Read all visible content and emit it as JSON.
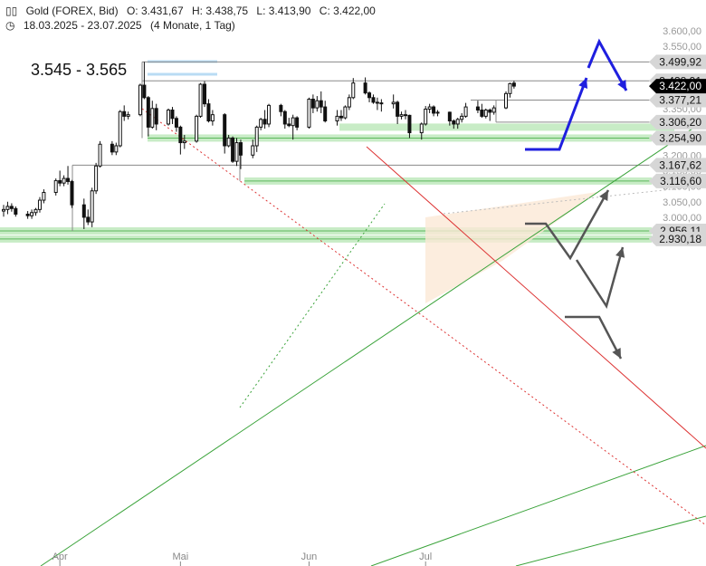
{
  "header": {
    "icon": "candlestick-icon",
    "instrument": "Gold (FOREX, Bid)",
    "open": "O: 3.431,67",
    "high": "H: 3.438,75",
    "low": "L: 3.413,90",
    "close": "C: 3.422,00",
    "clock_icon": "clock-icon",
    "range": "18.03.2025 - 23.07.2025",
    "span": "(4 Monate, 1 Tag)"
  },
  "target_zone": {
    "text": "3.545 - 3.565",
    "low": 3545,
    "high": 3565
  },
  "chart_data": {
    "type": "candlestick",
    "y_range": [
      2920,
      3620
    ],
    "y_ticks": [
      {
        "value": 3600,
        "label": "3.600,00"
      },
      {
        "value": 3550,
        "label": "3.550,00"
      },
      {
        "value": 3450,
        "label": "3.450,00"
      },
      {
        "value": 3400,
        "label": "3.400,00"
      },
      {
        "value": 3350,
        "label": "3.350,00"
      },
      {
        "value": 3200,
        "label": "3.200,00"
      },
      {
        "value": 3150,
        "label": "3.150,00"
      },
      {
        "value": 3100,
        "label": "3.100,00"
      },
      {
        "value": 3050,
        "label": "3.050,00"
      },
      {
        "value": 3000,
        "label": "3.000,00"
      }
    ],
    "x_labels": [
      {
        "label": "Apr",
        "date": "2025-04-01"
      },
      {
        "label": "Mai",
        "date": "2025-05-01"
      },
      {
        "label": "Jun",
        "date": "2025-06-02"
      },
      {
        "label": "Jul",
        "date": "2025-07-01"
      }
    ],
    "levels": [
      {
        "value": 3499.92,
        "label": "3.499,92",
        "style": "line"
      },
      {
        "value": 3438.91,
        "label": "3.438,91",
        "style": "line"
      },
      {
        "value": 3377.21,
        "label": "3.377,21",
        "style": "line"
      },
      {
        "value": 3306.2,
        "label": "3.306,20",
        "style": "line"
      },
      {
        "value": 3254.9,
        "label": "3.254,90",
        "style": "support"
      },
      {
        "value": 3167.62,
        "label": "3.167,62",
        "style": "line"
      },
      {
        "value": 3116.6,
        "label": "3.116,60",
        "style": "support"
      },
      {
        "value": 2956.11,
        "label": "2.956,11",
        "style": "support"
      },
      {
        "value": 2930.18,
        "label": "2.930,18",
        "style": "support"
      }
    ],
    "current_price": {
      "value": 3422.0,
      "label": "3.422,00"
    },
    "candles": [
      {
        "date": "2025-03-18",
        "o": 3020,
        "h": 3040,
        "l": 3002,
        "c": 3025
      },
      {
        "date": "2025-03-19",
        "o": 3025,
        "h": 3050,
        "l": 3010,
        "c": 3035
      },
      {
        "date": "2025-03-20",
        "o": 3035,
        "h": 3045,
        "l": 3018,
        "c": 3028
      },
      {
        "date": "2025-03-21",
        "o": 3028,
        "h": 3035,
        "l": 3002,
        "c": 3010
      },
      {
        "date": "2025-03-24",
        "o": 3010,
        "h": 3020,
        "l": 2995,
        "c": 3005
      },
      {
        "date": "2025-03-25",
        "o": 3005,
        "h": 3025,
        "l": 2995,
        "c": 3015
      },
      {
        "date": "2025-03-26",
        "o": 3015,
        "h": 3030,
        "l": 3005,
        "c": 3025
      },
      {
        "date": "2025-03-27",
        "o": 3025,
        "h": 3065,
        "l": 3015,
        "c": 3055
      },
      {
        "date": "2025-03-28",
        "o": 3055,
        "h": 3090,
        "l": 3045,
        "c": 3080
      },
      {
        "date": "2025-03-31",
        "o": 3080,
        "h": 3125,
        "l": 3070,
        "c": 3118
      },
      {
        "date": "2025-04-01",
        "o": 3118,
        "h": 3150,
        "l": 3100,
        "c": 3110
      },
      {
        "date": "2025-04-02",
        "o": 3110,
        "h": 3135,
        "l": 3100,
        "c": 3125
      },
      {
        "date": "2025-04-03",
        "o": 3125,
        "h": 3165,
        "l": 3105,
        "c": 3115
      },
      {
        "date": "2025-04-04",
        "o": 3115,
        "h": 3120,
        "l": 3030,
        "c": 3040
      },
      {
        "date": "2025-04-07",
        "o": 3040,
        "h": 3060,
        "l": 2962,
        "c": 3000
      },
      {
        "date": "2025-04-08",
        "o": 3000,
        "h": 3025,
        "l": 2975,
        "c": 2985
      },
      {
        "date": "2025-04-09",
        "o": 2985,
        "h": 3095,
        "l": 2968,
        "c": 3085
      },
      {
        "date": "2025-04-10",
        "o": 3085,
        "h": 3175,
        "l": 3075,
        "c": 3165
      },
      {
        "date": "2025-04-11",
        "o": 3165,
        "h": 3245,
        "l": 3160,
        "c": 3235
      },
      {
        "date": "2025-04-14",
        "o": 3235,
        "h": 3245,
        "l": 3200,
        "c": 3210
      },
      {
        "date": "2025-04-15",
        "o": 3210,
        "h": 3240,
        "l": 3200,
        "c": 3230
      },
      {
        "date": "2025-04-16",
        "o": 3230,
        "h": 3345,
        "l": 3225,
        "c": 3340
      },
      {
        "date": "2025-04-17",
        "o": 3340,
        "h": 3360,
        "l": 3310,
        "c": 3325
      },
      {
        "date": "2025-04-18",
        "o": 3325,
        "h": 3340,
        "l": 3315,
        "c": 3330
      },
      {
        "date": "2025-04-21",
        "o": 3330,
        "h": 3430,
        "l": 3325,
        "c": 3425
      },
      {
        "date": "2025-04-22",
        "o": 3425,
        "h": 3500,
        "l": 3380,
        "c": 3385
      },
      {
        "date": "2025-04-23",
        "o": 3385,
        "h": 3390,
        "l": 3260,
        "c": 3290
      },
      {
        "date": "2025-04-24",
        "o": 3290,
        "h": 3375,
        "l": 3285,
        "c": 3350
      },
      {
        "date": "2025-04-25",
        "o": 3350,
        "h": 3365,
        "l": 3280,
        "c": 3300
      },
      {
        "date": "2025-04-28",
        "o": 3300,
        "h": 3350,
        "l": 3295,
        "c": 3345
      },
      {
        "date": "2025-04-29",
        "o": 3345,
        "h": 3355,
        "l": 3300,
        "c": 3318
      },
      {
        "date": "2025-04-30",
        "o": 3318,
        "h": 3325,
        "l": 3275,
        "c": 3290
      },
      {
        "date": "2025-05-01",
        "o": 3290,
        "h": 3295,
        "l": 3202,
        "c": 3240
      },
      {
        "date": "2025-05-02",
        "o": 3240,
        "h": 3265,
        "l": 3220,
        "c": 3245
      },
      {
        "date": "2025-05-05",
        "o": 3245,
        "h": 3330,
        "l": 3240,
        "c": 3325
      },
      {
        "date": "2025-05-06",
        "o": 3325,
        "h": 3432,
        "l": 3320,
        "c": 3428
      },
      {
        "date": "2025-05-07",
        "o": 3428,
        "h": 3438,
        "l": 3355,
        "c": 3365
      },
      {
        "date": "2025-05-08",
        "o": 3365,
        "h": 3380,
        "l": 3305,
        "c": 3310
      },
      {
        "date": "2025-05-09",
        "o": 3310,
        "h": 3345,
        "l": 3295,
        "c": 3330
      },
      {
        "date": "2025-05-12",
        "o": 3330,
        "h": 3335,
        "l": 3205,
        "c": 3230
      },
      {
        "date": "2025-05-13",
        "o": 3230,
        "h": 3265,
        "l": 3225,
        "c": 3255
      },
      {
        "date": "2025-05-14",
        "o": 3255,
        "h": 3260,
        "l": 3175,
        "c": 3180
      },
      {
        "date": "2025-05-15",
        "o": 3180,
        "h": 3255,
        "l": 3165,
        "c": 3240
      },
      {
        "date": "2025-05-16",
        "o": 3240,
        "h": 3250,
        "l": 3155,
        "c": 3200
      },
      {
        "date": "2025-05-19",
        "o": 3200,
        "h": 3250,
        "l": 3190,
        "c": 3230
      },
      {
        "date": "2025-05-20",
        "o": 3230,
        "h": 3295,
        "l": 3210,
        "c": 3290
      },
      {
        "date": "2025-05-21",
        "o": 3290,
        "h": 3320,
        "l": 3280,
        "c": 3315
      },
      {
        "date": "2025-05-22",
        "o": 3315,
        "h": 3345,
        "l": 3285,
        "c": 3300
      },
      {
        "date": "2025-05-23",
        "o": 3300,
        "h": 3365,
        "l": 3290,
        "c": 3360
      },
      {
        "date": "2025-05-26",
        "o": 3360,
        "h": 3365,
        "l": 3325,
        "c": 3340
      },
      {
        "date": "2025-05-27",
        "o": 3340,
        "h": 3345,
        "l": 3285,
        "c": 3300
      },
      {
        "date": "2025-05-28",
        "o": 3300,
        "h": 3320,
        "l": 3290,
        "c": 3295
      },
      {
        "date": "2025-05-29",
        "o": 3295,
        "h": 3330,
        "l": 3250,
        "c": 3320
      },
      {
        "date": "2025-05-30",
        "o": 3320,
        "h": 3325,
        "l": 3280,
        "c": 3290
      },
      {
        "date": "2025-06-02",
        "o": 3290,
        "h": 3385,
        "l": 3285,
        "c": 3380
      },
      {
        "date": "2025-06-03",
        "o": 3380,
        "h": 3395,
        "l": 3335,
        "c": 3352
      },
      {
        "date": "2025-06-04",
        "o": 3352,
        "h": 3390,
        "l": 3340,
        "c": 3375
      },
      {
        "date": "2025-06-05",
        "o": 3375,
        "h": 3405,
        "l": 3335,
        "c": 3355
      },
      {
        "date": "2025-06-06",
        "o": 3355,
        "h": 3375,
        "l": 3305,
        "c": 3310
      },
      {
        "date": "2025-06-09",
        "o": 3310,
        "h": 3345,
        "l": 3295,
        "c": 3325
      },
      {
        "date": "2025-06-10",
        "o": 3325,
        "h": 3345,
        "l": 3310,
        "c": 3320
      },
      {
        "date": "2025-06-11",
        "o": 3320,
        "h": 3360,
        "l": 3315,
        "c": 3355
      },
      {
        "date": "2025-06-12",
        "o": 3355,
        "h": 3395,
        "l": 3345,
        "c": 3385
      },
      {
        "date": "2025-06-13",
        "o": 3385,
        "h": 3448,
        "l": 3380,
        "c": 3432
      },
      {
        "date": "2025-06-16",
        "o": 3432,
        "h": 3450,
        "l": 3395,
        "c": 3400
      },
      {
        "date": "2025-06-17",
        "o": 3400,
        "h": 3405,
        "l": 3370,
        "c": 3385
      },
      {
        "date": "2025-06-18",
        "o": 3385,
        "h": 3395,
        "l": 3365,
        "c": 3370
      },
      {
        "date": "2025-06-19",
        "o": 3370,
        "h": 3385,
        "l": 3345,
        "c": 3368
      },
      {
        "date": "2025-06-20",
        "o": 3368,
        "h": 3380,
        "l": 3340,
        "c": 3365
      },
      {
        "date": "2025-06-23",
        "o": 3365,
        "h": 3395,
        "l": 3350,
        "c": 3370
      },
      {
        "date": "2025-06-24",
        "o": 3370,
        "h": 3375,
        "l": 3300,
        "c": 3325
      },
      {
        "date": "2025-06-25",
        "o": 3325,
        "h": 3340,
        "l": 3315,
        "c": 3330
      },
      {
        "date": "2025-06-26",
        "o": 3330,
        "h": 3345,
        "l": 3315,
        "c": 3328
      },
      {
        "date": "2025-06-27",
        "o": 3328,
        "h": 3330,
        "l": 3255,
        "c": 3272
      },
      {
        "date": "2025-06-30",
        "o": 3272,
        "h": 3305,
        "l": 3250,
        "c": 3300
      },
      {
        "date": "2025-07-01",
        "o": 3300,
        "h": 3358,
        "l": 3295,
        "c": 3348
      },
      {
        "date": "2025-07-02",
        "o": 3348,
        "h": 3365,
        "l": 3335,
        "c": 3355
      },
      {
        "date": "2025-07-03",
        "o": 3355,
        "h": 3360,
        "l": 3325,
        "c": 3335
      },
      {
        "date": "2025-07-04",
        "o": 3335,
        "h": 3345,
        "l": 3325,
        "c": 3338
      },
      {
        "date": "2025-07-07",
        "o": 3338,
        "h": 3340,
        "l": 3295,
        "c": 3310
      },
      {
        "date": "2025-07-08",
        "o": 3310,
        "h": 3315,
        "l": 3285,
        "c": 3300
      },
      {
        "date": "2025-07-09",
        "o": 3300,
        "h": 3320,
        "l": 3285,
        "c": 3315
      },
      {
        "date": "2025-07-10",
        "o": 3315,
        "h": 3335,
        "l": 3305,
        "c": 3325
      },
      {
        "date": "2025-07-11",
        "o": 3325,
        "h": 3368,
        "l": 3320,
        "c": 3355
      },
      {
        "date": "2025-07-14",
        "o": 3355,
        "h": 3375,
        "l": 3335,
        "c": 3345
      },
      {
        "date": "2025-07-15",
        "o": 3345,
        "h": 3365,
        "l": 3320,
        "c": 3325
      },
      {
        "date": "2025-07-16",
        "o": 3325,
        "h": 3350,
        "l": 3318,
        "c": 3345
      },
      {
        "date": "2025-07-17",
        "o": 3345,
        "h": 3350,
        "l": 3310,
        "c": 3338
      },
      {
        "date": "2025-07-18",
        "o": 3338,
        "h": 3360,
        "l": 3330,
        "c": 3352
      },
      {
        "date": "2025-07-21",
        "o": 3352,
        "h": 3405,
        "l": 3348,
        "c": 3398
      },
      {
        "date": "2025-07-22",
        "o": 3398,
        "h": 3433,
        "l": 3385,
        "c": 3430
      },
      {
        "date": "2025-07-23",
        "o": 3431.67,
        "h": 3438.75,
        "l": 3413.9,
        "c": 3422.0
      }
    ]
  },
  "colors": {
    "candle": "#111111",
    "support_fill": "#c8ecc6",
    "support_line": "#5cb85c",
    "trend_green": "#3aa33a",
    "trend_red": "#dd3333",
    "level_tag": "#d6d6d6",
    "price_tag": "#000000",
    "scenario_blue": "#1f1fdf",
    "scenario_gray": "#555555",
    "target_line": "#b9dcf4",
    "triangle_fill": "#fbe9d6"
  }
}
